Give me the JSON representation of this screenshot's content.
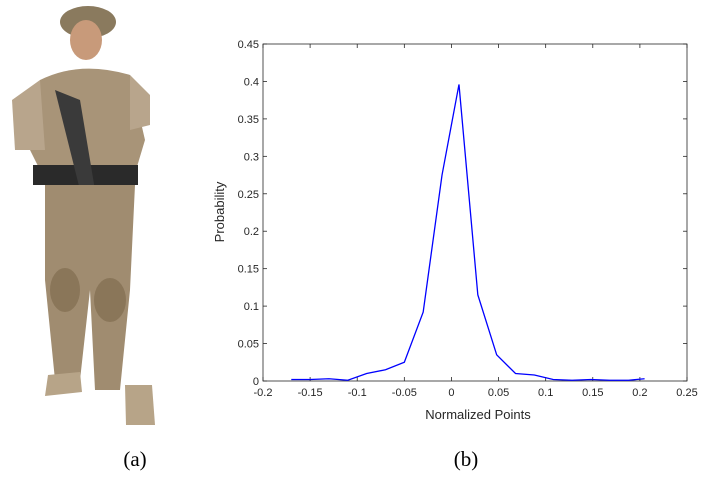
{
  "captions": [
    "(a)",
    "(b)"
  ],
  "chart_data": {
    "type": "line",
    "xlabel": "Normalized Points",
    "ylabel": "Probability",
    "x": [
      -0.17,
      -0.15,
      -0.13,
      -0.11,
      -0.09,
      -0.07,
      -0.05,
      -0.03,
      -0.01,
      0.008,
      0.028,
      0.048,
      0.068,
      0.088,
      0.108,
      0.128,
      0.148,
      0.168,
      0.188,
      0.205
    ],
    "series": [
      {
        "color": "#0000ff",
        "values": [
          0.002,
          0.002,
          0.003,
          0.001,
          0.01,
          0.015,
          0.025,
          0.092,
          0.275,
          0.396,
          0.115,
          0.035,
          0.01,
          0.008,
          0.002,
          0.001,
          0.002,
          0.001,
          0.001,
          0.003
        ]
      }
    ],
    "xlim": [
      -0.2,
      0.25
    ],
    "ylim": [
      0,
      0.45
    ],
    "xticks": [
      -0.2,
      -0.15,
      -0.1,
      -0.05,
      0,
      0.05,
      0.1,
      0.15,
      0.2,
      0.25
    ],
    "yticks": [
      0,
      0.05,
      0.1,
      0.15,
      0.2,
      0.25,
      0.3,
      0.35,
      0.4,
      0.45
    ]
  }
}
